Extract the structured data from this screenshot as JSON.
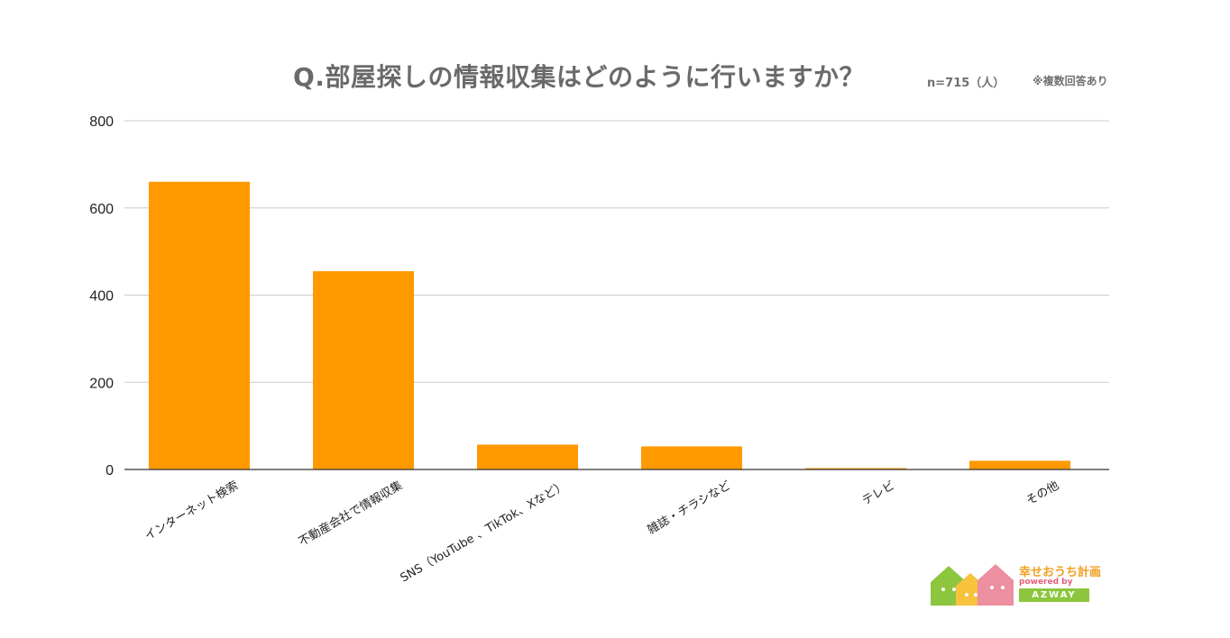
{
  "header": {
    "title": "Q.部屋探しの情報収集はどのように行いますか？",
    "sample_size": "n=715（人）",
    "note": "※複数回答あり"
  },
  "chart_data": {
    "type": "bar",
    "title": "Q.部屋探しの情報収集はどのように行いますか？",
    "xlabel": "",
    "ylabel": "",
    "categories": [
      "インターネット検索",
      "不動産会社で情報収集",
      "SNS（YouTube 、TikTok、Xなど）",
      "雑誌・チラシなど",
      "テレビ",
      "その他"
    ],
    "values": [
      660,
      455,
      57,
      53,
      3,
      20
    ],
    "ylim": [
      0,
      800
    ],
    "yticks": [
      0,
      200,
      400,
      600,
      800
    ],
    "grid": true,
    "bar_color": "#ff9900"
  },
  "logo": {
    "name": "幸せおうち計画",
    "powered": "powered by",
    "brand": "AZWAY"
  }
}
